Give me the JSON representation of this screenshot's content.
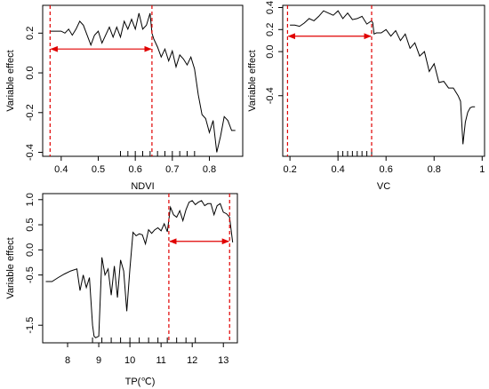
{
  "chart_data": [
    {
      "type": "line",
      "xlabel": "NDVI",
      "ylabel": "Variable effect",
      "xlim": [
        0.35,
        0.89
      ],
      "ylim": [
        -0.42,
        0.34
      ],
      "xticks": [
        0.4,
        0.5,
        0.6,
        0.7,
        0.8
      ],
      "yticks": [
        -0.4,
        -0.2,
        0.0,
        0.2
      ],
      "ytick_labels": [
        "-0.4",
        "-0.2",
        "0.0",
        "0.2"
      ],
      "grid": false,
      "series": [
        {
          "x": [
            0.37,
            0.38,
            0.4,
            0.41,
            0.42,
            0.43,
            0.44,
            0.45,
            0.46,
            0.47,
            0.48,
            0.49,
            0.5,
            0.51,
            0.52,
            0.53,
            0.54,
            0.55,
            0.56,
            0.57,
            0.58,
            0.59,
            0.6,
            0.61,
            0.62,
            0.63,
            0.64,
            0.645,
            0.65,
            0.66,
            0.67,
            0.68,
            0.69,
            0.7,
            0.71,
            0.72,
            0.73,
            0.74,
            0.75,
            0.76,
            0.77,
            0.78,
            0.79,
            0.8,
            0.81,
            0.82,
            0.83,
            0.84,
            0.85,
            0.86,
            0.87
          ],
          "y": [
            0.21,
            0.21,
            0.21,
            0.2,
            0.22,
            0.19,
            0.22,
            0.26,
            0.24,
            0.19,
            0.14,
            0.19,
            0.21,
            0.15,
            0.19,
            0.23,
            0.18,
            0.23,
            0.18,
            0.26,
            0.22,
            0.27,
            0.22,
            0.3,
            0.22,
            0.24,
            0.3,
            0.2,
            0.17,
            0.13,
            0.08,
            0.12,
            0.06,
            0.11,
            0.03,
            0.09,
            0.07,
            0.04,
            0.08,
            0.02,
            -0.11,
            -0.21,
            -0.23,
            -0.3,
            -0.24,
            -0.4,
            -0.32,
            -0.22,
            -0.24,
            -0.29,
            -0.29
          ]
        }
      ],
      "ref_vlines": [
        0.37,
        0.645
      ],
      "arrow": {
        "from": 0.37,
        "to": 0.645,
        "y": 0.12
      },
      "rug": [
        0.56,
        0.58,
        0.6,
        0.62,
        0.64,
        0.66,
        0.68,
        0.7,
        0.72,
        0.74,
        0.76
      ],
      "series_color": "#000000",
      "ref_color": "#e00000"
    },
    {
      "type": "line",
      "xlabel": "VC",
      "ylabel": "Variable effect",
      "xlim": [
        0.17,
        1.01
      ],
      "ylim": [
        -0.95,
        0.42
      ],
      "xticks": [
        0.2,
        0.4,
        0.6,
        0.8,
        1.0
      ],
      "yticks": [
        -0.4,
        0.0,
        0.2,
        0.4
      ],
      "ytick_labels": [
        "-0.4",
        "0.0",
        "0.2",
        "0.4"
      ],
      "grid": false,
      "series": [
        {
          "x": [
            0.2,
            0.22,
            0.24,
            0.26,
            0.28,
            0.3,
            0.32,
            0.34,
            0.36,
            0.38,
            0.4,
            0.42,
            0.44,
            0.46,
            0.48,
            0.5,
            0.52,
            0.54,
            0.545,
            0.55,
            0.56,
            0.58,
            0.6,
            0.62,
            0.64,
            0.66,
            0.68,
            0.7,
            0.72,
            0.74,
            0.76,
            0.78,
            0.8,
            0.82,
            0.84,
            0.86,
            0.88,
            0.9,
            0.91,
            0.92,
            0.93,
            0.94,
            0.95,
            0.96,
            0.97
          ],
          "y": [
            0.24,
            0.24,
            0.23,
            0.26,
            0.3,
            0.28,
            0.32,
            0.37,
            0.35,
            0.33,
            0.37,
            0.3,
            0.35,
            0.29,
            0.3,
            0.32,
            0.25,
            0.28,
            0.26,
            0.16,
            0.17,
            0.17,
            0.2,
            0.14,
            0.19,
            0.1,
            0.16,
            0.03,
            0.08,
            -0.04,
            0.0,
            -0.18,
            -0.11,
            -0.28,
            -0.27,
            -0.33,
            -0.33,
            -0.4,
            -0.45,
            -0.84,
            -0.64,
            -0.55,
            -0.51,
            -0.5,
            -0.5
          ]
        }
      ],
      "ref_vlines": [
        0.19,
        0.54
      ],
      "arrow": {
        "from": 0.19,
        "to": 0.54,
        "y": 0.14
      },
      "rug": [
        0.4,
        0.42,
        0.44,
        0.46,
        0.48,
        0.5,
        0.52,
        0.54
      ],
      "series_color": "#000000",
      "ref_color": "#e00000"
    },
    {
      "type": "line",
      "xlabel": "TP(℃)",
      "ylabel": "Variable effect",
      "xlim": [
        7.2,
        13.45
      ],
      "ylim": [
        -1.85,
        1.12
      ],
      "xticks": [
        8,
        9,
        10,
        11,
        12,
        13
      ],
      "yticks": [
        -1.5,
        -0.5,
        0.0,
        0.5,
        1.0
      ],
      "ytick_labels": [
        "-1.5",
        "-0.5",
        "0.0",
        "0.5",
        "1.0"
      ],
      "grid": false,
      "series": [
        {
          "x": [
            7.3,
            7.5,
            7.7,
            7.9,
            8.1,
            8.3,
            8.4,
            8.5,
            8.6,
            8.7,
            8.8,
            8.85,
            8.9,
            9.0,
            9.1,
            9.2,
            9.3,
            9.4,
            9.5,
            9.6,
            9.7,
            9.8,
            9.9,
            10.0,
            10.1,
            10.2,
            10.3,
            10.4,
            10.5,
            10.6,
            10.7,
            10.8,
            10.9,
            11.0,
            11.1,
            11.2,
            11.3,
            11.4,
            11.5,
            11.6,
            11.7,
            11.8,
            11.9,
            12.0,
            12.1,
            12.2,
            12.3,
            12.4,
            12.5,
            12.6,
            12.7,
            12.8,
            12.9,
            13.0,
            13.1,
            13.2,
            13.3
          ],
          "y": [
            -0.63,
            -0.63,
            -0.55,
            -0.48,
            -0.42,
            -0.38,
            -0.81,
            -0.5,
            -0.75,
            -0.55,
            -1.5,
            -1.72,
            -1.75,
            -1.72,
            -0.15,
            -0.5,
            -0.38,
            -0.9,
            -0.32,
            -0.95,
            -0.2,
            -0.42,
            -1.22,
            -0.38,
            0.35,
            0.28,
            0.32,
            0.3,
            0.12,
            0.4,
            0.33,
            0.4,
            0.44,
            0.38,
            0.52,
            0.36,
            0.85,
            0.7,
            0.65,
            0.78,
            0.58,
            0.8,
            0.95,
            0.98,
            0.9,
            0.95,
            0.98,
            0.88,
            0.92,
            0.92,
            0.7,
            0.88,
            0.92,
            0.75,
            0.72,
            0.65,
            0.15
          ]
        }
      ],
      "ref_vlines": [
        11.25,
        13.2
      ],
      "arrow": {
        "from": 11.25,
        "to": 13.2,
        "y": 0.17
      },
      "rug": [
        8.8,
        9.1,
        9.4,
        9.7,
        10.0,
        10.3,
        10.6,
        10.9,
        11.2,
        11.5,
        11.8,
        12.1
      ],
      "series_color": "#000000",
      "ref_color": "#e00000"
    }
  ]
}
